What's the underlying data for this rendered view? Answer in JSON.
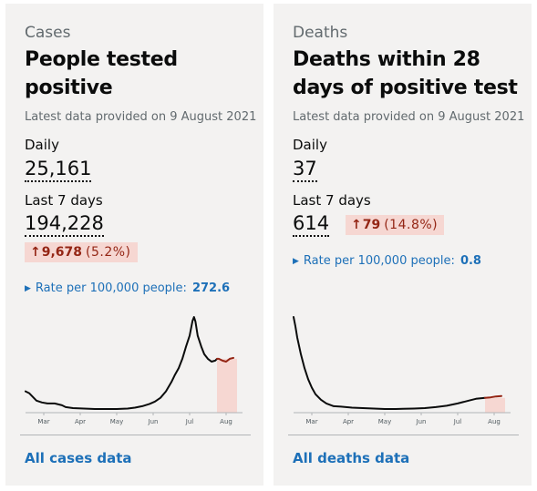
{
  "cases": {
    "caption": "Cases",
    "title": "People tested positive",
    "updated": "Latest data provided on 9 August 2021",
    "daily_label": "Daily",
    "daily_value": "25,161",
    "week_label": "Last 7 days",
    "week_value": "194,228",
    "change": {
      "arrow": "↑",
      "value": "9,678",
      "percent": "(5.2%)"
    },
    "rate_label": "Rate per 100,000 people:",
    "rate_value": "272.6",
    "link": "All cases data"
  },
  "deaths": {
    "caption": "Deaths",
    "title": "Deaths within 28 days of positive test",
    "updated": "Latest data provided on 9 August 2021",
    "daily_label": "Daily",
    "daily_value": "37",
    "week_label": "Last 7 days",
    "week_value": "614",
    "change": {
      "arrow": "↑",
      "value": "79",
      "percent": "(14.8%)"
    },
    "rate_label": "Rate per 100,000 people:",
    "rate_value": "0.8",
    "link": "All deaths data"
  },
  "colors": {
    "accent_link": "#1d70b8",
    "change_bg": "#f6d7d2",
    "change_text": "#942514",
    "line": "#0b0c0c",
    "recent": "#d4351c"
  },
  "chart_data": [
    {
      "type": "line",
      "x_ticks": [
        "Mar",
        "Apr",
        "May",
        "Jun",
        "Jul",
        "Aug"
      ],
      "tick_months": [
        2.5,
        3.5,
        4.5,
        5.5,
        6.5,
        7.5
      ],
      "x_range": [
        2.0,
        7.8
      ],
      "recent_from": 7.25,
      "points": [
        [
          2.0,
          0.2
        ],
        [
          2.1,
          0.18
        ],
        [
          2.2,
          0.14
        ],
        [
          2.3,
          0.1
        ],
        [
          2.45,
          0.08
        ],
        [
          2.6,
          0.07
        ],
        [
          2.8,
          0.07
        ],
        [
          3.0,
          0.05
        ],
        [
          3.1,
          0.03
        ],
        [
          3.3,
          0.02
        ],
        [
          3.6,
          0.015
        ],
        [
          3.9,
          0.01
        ],
        [
          4.2,
          0.01
        ],
        [
          4.5,
          0.01
        ],
        [
          4.8,
          0.015
        ],
        [
          5.0,
          0.025
        ],
        [
          5.2,
          0.04
        ],
        [
          5.4,
          0.065
        ],
        [
          5.55,
          0.09
        ],
        [
          5.7,
          0.13
        ],
        [
          5.85,
          0.2
        ],
        [
          6.0,
          0.3
        ],
        [
          6.1,
          0.38
        ],
        [
          6.2,
          0.45
        ],
        [
          6.3,
          0.55
        ],
        [
          6.4,
          0.68
        ],
        [
          6.5,
          0.8
        ],
        [
          6.58,
          0.96
        ],
        [
          6.62,
          1.0
        ],
        [
          6.66,
          0.95
        ],
        [
          6.72,
          0.8
        ],
        [
          6.82,
          0.68
        ],
        [
          6.9,
          0.6
        ],
        [
          7.0,
          0.55
        ],
        [
          7.1,
          0.52
        ],
        [
          7.2,
          0.53
        ],
        [
          7.25,
          0.55
        ]
      ],
      "recent_points": [
        [
          7.25,
          0.55
        ],
        [
          7.3,
          0.55
        ],
        [
          7.4,
          0.53
        ],
        [
          7.5,
          0.52
        ],
        [
          7.6,
          0.55
        ],
        [
          7.7,
          0.56
        ]
      ]
    },
    {
      "type": "line",
      "x_ticks": [
        "Mar",
        "Apr",
        "May",
        "Jun",
        "Jul",
        "Aug"
      ],
      "tick_months": [
        2.5,
        3.5,
        4.5,
        5.5,
        6.5,
        7.5
      ],
      "x_range": [
        2.0,
        7.8
      ],
      "recent_from": 7.25,
      "points": [
        [
          2.0,
          1.0
        ],
        [
          2.05,
          0.9
        ],
        [
          2.1,
          0.78
        ],
        [
          2.2,
          0.6
        ],
        [
          2.3,
          0.45
        ],
        [
          2.4,
          0.33
        ],
        [
          2.5,
          0.24
        ],
        [
          2.6,
          0.17
        ],
        [
          2.75,
          0.11
        ],
        [
          2.9,
          0.07
        ],
        [
          3.1,
          0.04
        ],
        [
          3.3,
          0.035
        ],
        [
          3.6,
          0.025
        ],
        [
          3.9,
          0.02
        ],
        [
          4.2,
          0.015
        ],
        [
          4.5,
          0.01
        ],
        [
          4.8,
          0.01
        ],
        [
          5.0,
          0.012
        ],
        [
          5.3,
          0.015
        ],
        [
          5.6,
          0.02
        ],
        [
          5.9,
          0.03
        ],
        [
          6.2,
          0.045
        ],
        [
          6.5,
          0.07
        ],
        [
          6.8,
          0.1
        ],
        [
          7.0,
          0.12
        ],
        [
          7.25,
          0.13
        ]
      ],
      "recent_points": [
        [
          7.25,
          0.13
        ],
        [
          7.4,
          0.135
        ],
        [
          7.55,
          0.145
        ],
        [
          7.7,
          0.15
        ]
      ]
    }
  ]
}
